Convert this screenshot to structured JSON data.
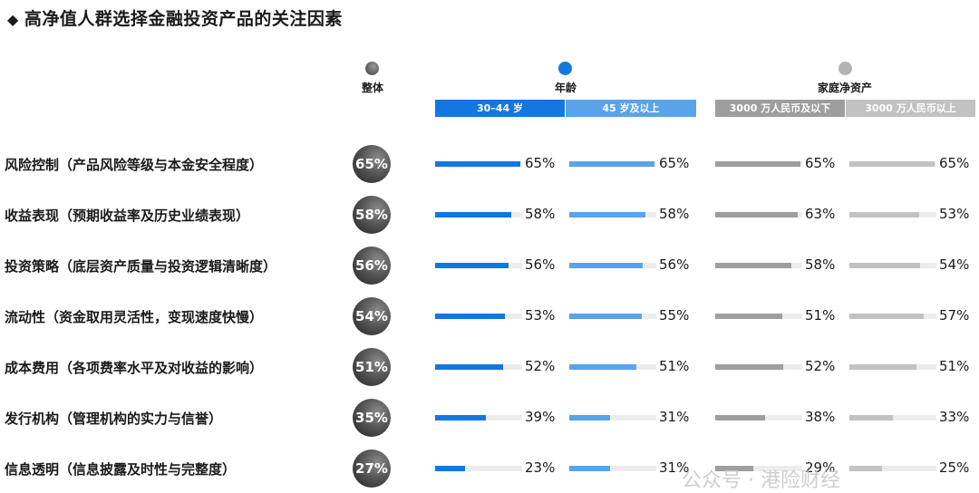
{
  "title": "高净值人群选择金融投资产品的关注因素",
  "headers": {
    "overall": "整体",
    "age": "年龄",
    "wealth": "家庭净资产"
  },
  "bands": [
    "30–44 岁",
    "45 岁及以上",
    "3000 万人民币及以下",
    "3000 万人民币以上"
  ],
  "colors": {
    "overall_dot": "#555555",
    "age_dot": "#1277e1",
    "wealth_dot": "#b3b3b3",
    "band_age_1": "#1277e1",
    "band_age_2": "#5aa3ea",
    "band_wealth_1": "#9e9e9e",
    "band_wealth_2": "#c2c2c2",
    "track": "#ececec"
  },
  "watermark": "公众号 · 港险财经",
  "chart_data": {
    "type": "bar",
    "categories": [
      "风险控制（产品风险等级与本金安全程度）",
      "收益表现（预期收益率及历史业绩表现）",
      "投资策略（底层资产质量与投资逻辑清晰度）",
      "流动性（资金取用灵活性，变现速度快慢）",
      "成本费用（各项费率水平及对收益的影响）",
      "发行机构（管理机构的实力与信誉）",
      "信息透明（信息披露及时性与完整度）"
    ],
    "overall": [
      65,
      58,
      56,
      54,
      51,
      35,
      27
    ],
    "series": [
      {
        "name": "30–44 岁",
        "values": [
          65,
          58,
          56,
          53,
          52,
          39,
          23
        ]
      },
      {
        "name": "45 岁及以上",
        "values": [
          65,
          58,
          56,
          55,
          51,
          31,
          31
        ]
      },
      {
        "name": "3000 万人民币及以下",
        "values": [
          65,
          63,
          58,
          51,
          52,
          38,
          29
        ]
      },
      {
        "name": "3000 万人民币以上",
        "values": [
          65,
          53,
          54,
          57,
          51,
          33,
          25
        ]
      }
    ],
    "ylim": [
      0,
      100
    ],
    "unit": "%"
  }
}
